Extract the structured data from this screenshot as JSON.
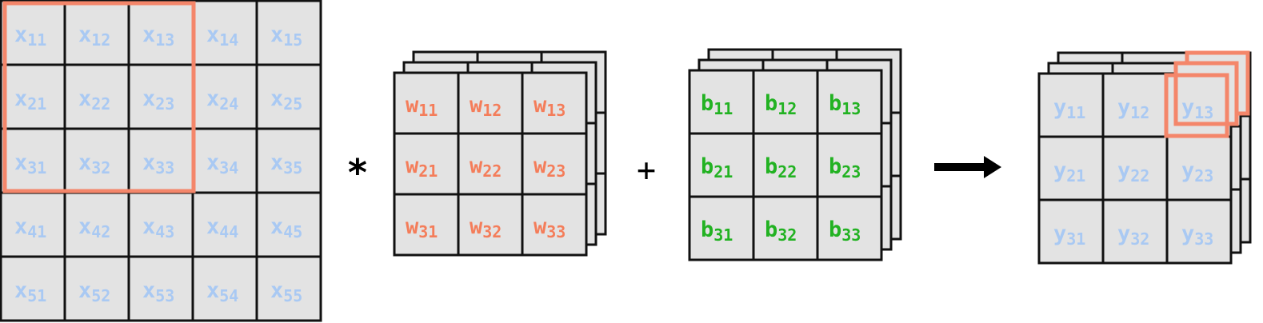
{
  "colors": {
    "cell_fill": "#e3e3e3",
    "grid_stroke": "#111111",
    "input_text": "#a9c9f3",
    "weight_text": "#f47d5a",
    "bias_text": "#22b222",
    "highlight": "#f4866a",
    "output_text": "#a9c9f3",
    "arrow": "#000000"
  },
  "input_matrix": {
    "symbol": "x",
    "rows": [
      [
        "11",
        "12",
        "13",
        "14",
        "15"
      ],
      [
        "21",
        "22",
        "23",
        "24",
        "25"
      ],
      [
        "31",
        "32",
        "33",
        "34",
        "35"
      ],
      [
        "41",
        "42",
        "43",
        "44",
        "45"
      ],
      [
        "51",
        "52",
        "53",
        "54",
        "55"
      ]
    ]
  },
  "operator_multiply": "*",
  "weight_matrix": {
    "symbol": "w",
    "rows": [
      [
        "11",
        "12",
        "13"
      ],
      [
        "21",
        "22",
        "23"
      ],
      [
        "31",
        "32",
        "33"
      ]
    ]
  },
  "operator_add": "+",
  "bias_matrix": {
    "symbol": "b",
    "rows": [
      [
        "11",
        "12",
        "13"
      ],
      [
        "21",
        "22",
        "23"
      ],
      [
        "31",
        "32",
        "33"
      ]
    ]
  },
  "result_arrow_icon": "arrow-right-icon",
  "output_matrix": {
    "symbol": "y",
    "rows": [
      [
        "11",
        "12",
        "13"
      ],
      [
        "21",
        "22",
        "23"
      ],
      [
        "31",
        "32",
        "33"
      ]
    ]
  }
}
